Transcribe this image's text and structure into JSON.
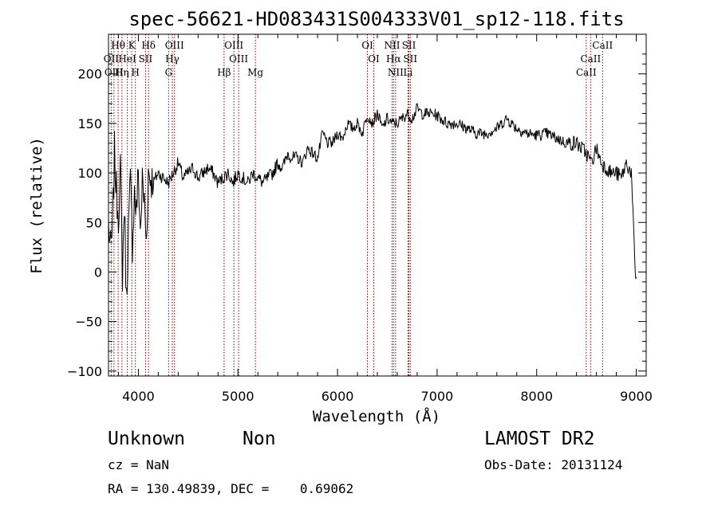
{
  "chart_data": {
    "type": "line",
    "title": "spec-56621-HD083431S004333V01_sp12-118.fits",
    "xlabel": "Wavelength (Å)",
    "ylabel": "Flux (relative)",
    "xlim": [
      3700,
      9100
    ],
    "ylim": [
      -105,
      240
    ],
    "x_ticks": [
      4000,
      5000,
      6000,
      7000,
      8000,
      9000
    ],
    "x_tick_labels": [
      "4000",
      "5000",
      "6000",
      "7000",
      "8000",
      "9000"
    ],
    "y_ticks": [
      -100,
      -50,
      0,
      50,
      100,
      150,
      200
    ],
    "y_tick_labels": [
      "−100",
      "−50",
      "0",
      "50",
      "100",
      "150",
      "200"
    ],
    "grid": false,
    "line_color": "#000000",
    "marker_color": "#8b0000",
    "spectrum": {
      "x": [
        3700,
        3720,
        3740,
        3760,
        3780,
        3800,
        3820,
        3840,
        3860,
        3880,
        3900,
        3920,
        3940,
        3960,
        3980,
        4000,
        4020,
        4040,
        4060,
        4080,
        4100,
        4150,
        4200,
        4250,
        4300,
        4350,
        4400,
        4450,
        4500,
        4550,
        4600,
        4650,
        4700,
        4750,
        4800,
        4850,
        4900,
        4950,
        5000,
        5050,
        5100,
        5150,
        5200,
        5250,
        5300,
        5350,
        5400,
        5450,
        5500,
        5550,
        5600,
        5650,
        5700,
        5750,
        5800,
        5850,
        5900,
        5950,
        6000,
        6050,
        6100,
        6150,
        6200,
        6250,
        6300,
        6350,
        6400,
        6450,
        6500,
        6550,
        6600,
        6650,
        6700,
        6750,
        6800,
        6850,
        6900,
        6950,
        7000,
        7100,
        7200,
        7300,
        7400,
        7500,
        7600,
        7700,
        7800,
        7900,
        8000,
        8100,
        8200,
        8300,
        8400,
        8500,
        8550,
        8600,
        8650,
        8700,
        8750,
        8800,
        8850,
        8900,
        8950,
        8990,
        9000
      ],
      "y": [
        50,
        20,
        40,
        120,
        80,
        60,
        100,
        0,
        70,
        -30,
        40,
        90,
        30,
        80,
        60,
        100,
        40,
        90,
        70,
        30,
        100,
        90,
        100,
        95,
        90,
        100,
        110,
        95,
        100,
        105,
        95,
        100,
        105,
        100,
        90,
        95,
        100,
        90,
        100,
        95,
        90,
        100,
        95,
        90,
        95,
        100,
        110,
        105,
        120,
        115,
        115,
        110,
        125,
        120,
        115,
        140,
        130,
        130,
        140,
        135,
        150,
        145,
        150,
        140,
        160,
        150,
        160,
        145,
        155,
        150,
        150,
        155,
        160,
        155,
        165,
        160,
        160,
        160,
        158,
        150,
        150,
        145,
        140,
        140,
        145,
        155,
        145,
        140,
        138,
        140,
        135,
        130,
        130,
        120,
        110,
        125,
        110,
        105,
        100,
        100,
        95,
        110,
        100,
        0,
        -5
      ]
    },
    "lines_top": [
      {
        "label": "Hθ",
        "wave": 3797
      },
      {
        "label": "K",
        "wave": 3934
      },
      {
        "label": "Hδ",
        "wave": 4102
      },
      {
        "label": "OIII",
        "wave": 4363
      },
      {
        "label": "OIII",
        "wave": 4959
      },
      {
        "label": "OI",
        "wave": 6300
      },
      {
        "label": "NII",
        "wave": 6548
      },
      {
        "label": "SII",
        "wave": 6717
      },
      {
        "label": "CaII",
        "wave": 8662
      }
    ],
    "lines_mid": [
      {
        "label": "OII",
        "wave": 3727
      },
      {
        "label": "HeI",
        "wave": 3889
      },
      {
        "label": "SII",
        "wave": 4072
      },
      {
        "label": "Hγ",
        "wave": 4341
      },
      {
        "label": "OIII",
        "wave": 5007
      },
      {
        "label": "OI",
        "wave": 6364
      },
      {
        "label": "Hα",
        "wave": 6563
      },
      {
        "label": "SII",
        "wave": 6731
      },
      {
        "label": "CaII",
        "wave": 8542
      }
    ],
    "lines_low": [
      {
        "label": "OIII",
        "wave": 3755
      },
      {
        "label": "Hη",
        "wave": 3835
      },
      {
        "label": "H",
        "wave": 3970
      },
      {
        "label": "G",
        "wave": 4304
      },
      {
        "label": "Hβ",
        "wave": 4861
      },
      {
        "label": "Mg",
        "wave": 5175
      },
      {
        "label": "NII",
        "wave": 6583
      },
      {
        "label": "Li",
        "wave": 6708
      },
      {
        "label": "CaII",
        "wave": 8498
      }
    ]
  },
  "footer": {
    "class_label": "Unknown",
    "subclass_label": "Non",
    "survey_label": "LAMOST DR2",
    "cz_text": "cz = NaN",
    "obsdate_text": "Obs-Date: 20131124",
    "radec_text": "RA = 130.49839, DEC =    0.69062"
  }
}
